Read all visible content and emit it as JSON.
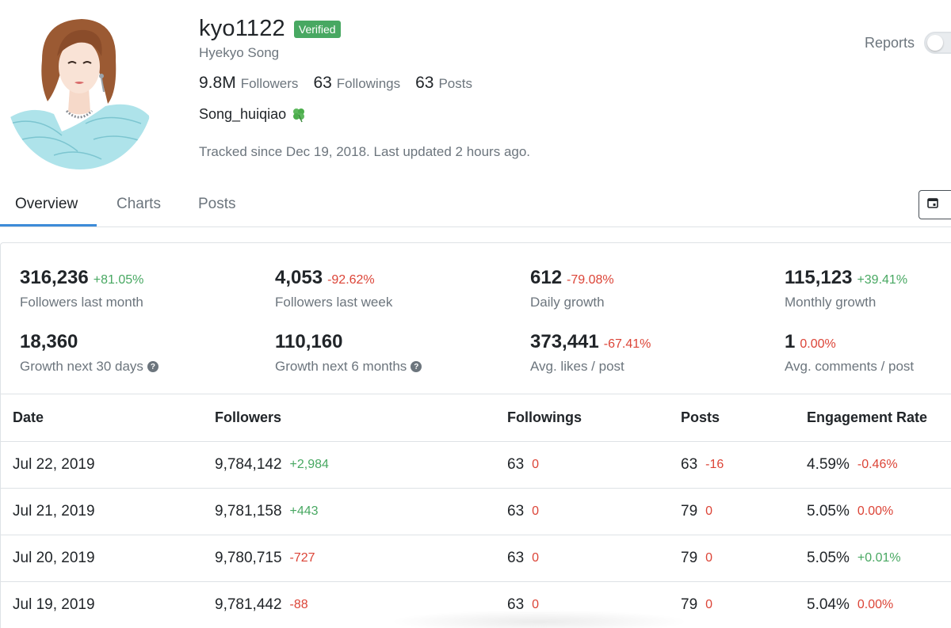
{
  "profile": {
    "username": "kyo1122",
    "verified_label": "Verified",
    "full_name": "Hyekyo Song",
    "bio": "Song_huiqiao",
    "bio_icon": "four-leaf-clover-icon",
    "tracked_text": "Tracked since Dec 19, 2018. Last updated 2 hours ago.",
    "stats": [
      {
        "value": "9.8M",
        "label": "Followers"
      },
      {
        "value": "63",
        "label": "Followings"
      },
      {
        "value": "63",
        "label": "Posts"
      }
    ]
  },
  "reports": {
    "label": "Reports",
    "enabled": false
  },
  "tabs": [
    {
      "label": "Overview",
      "active": true
    },
    {
      "label": "Charts",
      "active": false
    },
    {
      "label": "Posts",
      "active": false
    }
  ],
  "date_button": {
    "icon": "calendar-icon"
  },
  "metrics": [
    {
      "value": "316,236",
      "change": "+81.05%",
      "trend": "pos",
      "label": "Followers last month",
      "help": false
    },
    {
      "value": "4,053",
      "change": "-92.62%",
      "trend": "neg",
      "label": "Followers last week",
      "help": false
    },
    {
      "value": "612",
      "change": "-79.08%",
      "trend": "neg",
      "label": "Daily growth",
      "help": false
    },
    {
      "value": "115,123",
      "change": "+39.41%",
      "trend": "pos",
      "label": "Monthly growth",
      "help": false
    },
    {
      "value": "18,360",
      "change": "",
      "trend": "",
      "label": "Growth next 30 days",
      "help": true
    },
    {
      "value": "110,160",
      "change": "",
      "trend": "",
      "label": "Growth next 6 months",
      "help": true
    },
    {
      "value": "373,441",
      "change": "-67.41%",
      "trend": "neg",
      "label": "Avg. likes / post",
      "help": false
    },
    {
      "value": "1",
      "change": "0.00%",
      "trend": "neg",
      "label": "Avg. comments / post",
      "help": false
    }
  ],
  "table": {
    "columns": [
      "Date",
      "Followers",
      "Followings",
      "Posts",
      "Engagement Rate"
    ],
    "rows": [
      {
        "date": "Jul 22, 2019",
        "followers": "9,784,142",
        "followers_delta": "+2,984",
        "followers_trend": "pos",
        "followings": "63",
        "followings_delta": "0",
        "followings_trend": "neg",
        "posts": "63",
        "posts_delta": "-16",
        "posts_trend": "neg",
        "engagement": "4.59%",
        "engagement_delta": "-0.46%",
        "engagement_trend": "neg"
      },
      {
        "date": "Jul 21, 2019",
        "followers": "9,781,158",
        "followers_delta": "+443",
        "followers_trend": "pos",
        "followings": "63",
        "followings_delta": "0",
        "followings_trend": "neg",
        "posts": "79",
        "posts_delta": "0",
        "posts_trend": "neg",
        "engagement": "5.05%",
        "engagement_delta": "0.00%",
        "engagement_trend": "neg"
      },
      {
        "date": "Jul 20, 2019",
        "followers": "9,780,715",
        "followers_delta": "-727",
        "followers_trend": "neg",
        "followings": "63",
        "followings_delta": "0",
        "followings_trend": "neg",
        "posts": "79",
        "posts_delta": "0",
        "posts_trend": "neg",
        "engagement": "5.05%",
        "engagement_delta": "+0.01%",
        "engagement_trend": "pos"
      },
      {
        "date": "Jul 19, 2019",
        "followers": "9,781,442",
        "followers_delta": "-88",
        "followers_trend": "neg",
        "followings": "63",
        "followings_delta": "0",
        "followings_trend": "neg",
        "posts": "79",
        "posts_delta": "0",
        "posts_trend": "neg",
        "engagement": "5.04%",
        "engagement_delta": "0.00%",
        "engagement_trend": "neg"
      }
    ]
  },
  "colors": {
    "positive": "#48a862",
    "negative": "#dc4437",
    "accent": "#3d8bd8",
    "verified": "#48a862"
  }
}
